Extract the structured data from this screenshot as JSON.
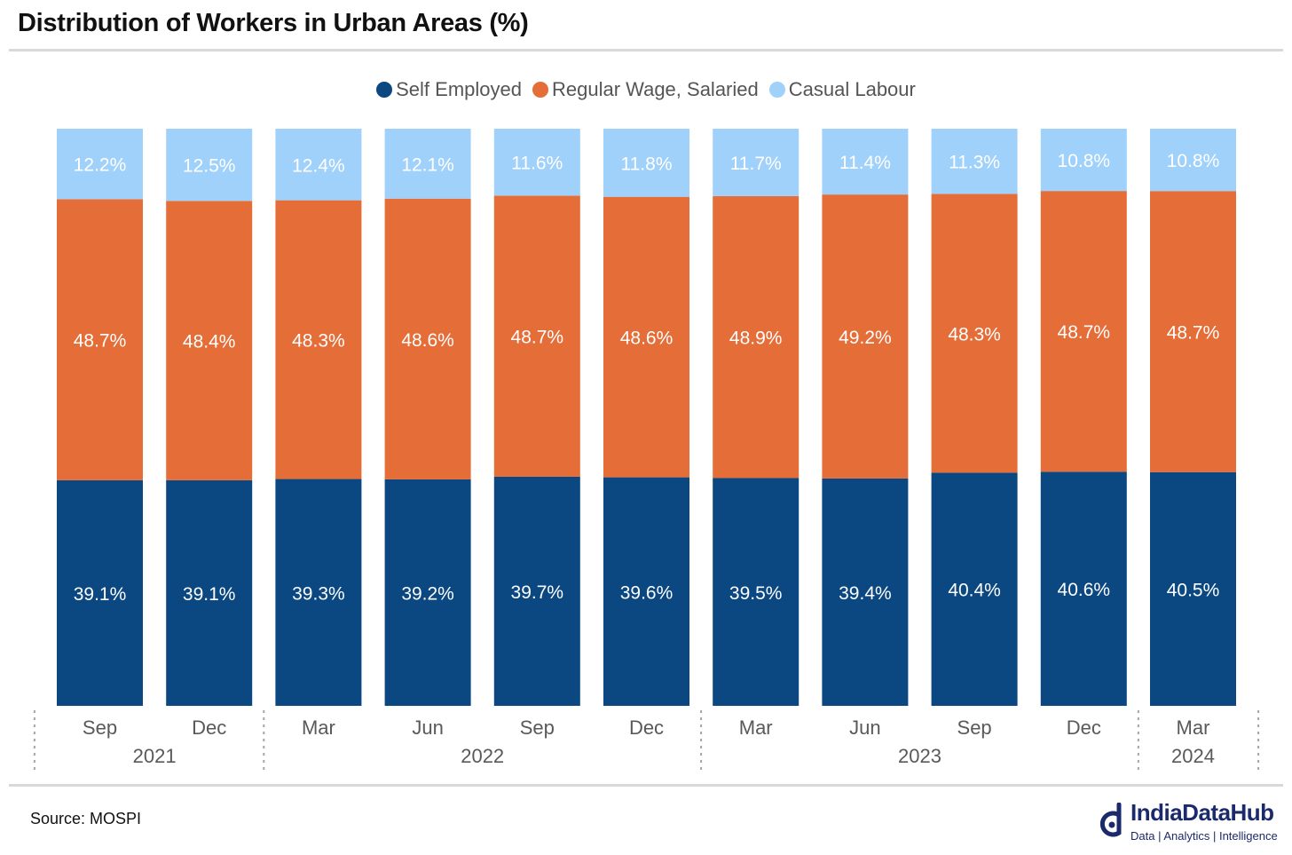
{
  "header": {
    "title": "Distribution of Workers in Urban Areas (%)"
  },
  "footer": {
    "source": "Source: MOSPI",
    "brand_name": "IndiaDataHub",
    "brand_tagline": "Data | Analytics | Intelligence"
  },
  "chart_data": {
    "type": "bar",
    "stacked": true,
    "ylim": [
      0,
      100
    ],
    "grid": false,
    "legend_position": "top-center",
    "categories": [
      "Sep",
      "Dec",
      "Mar",
      "Jun",
      "Sep",
      "Dec",
      "Mar",
      "Jun",
      "Sep",
      "Dec",
      "Mar"
    ],
    "year_groups": [
      {
        "label": "2021",
        "count": 2
      },
      {
        "label": "2022",
        "count": 4
      },
      {
        "label": "2023",
        "count": 4
      },
      {
        "label": "2024",
        "count": 1
      }
    ],
    "series": [
      {
        "name": "Self Employed",
        "color": "#0b4780",
        "label_color": "#ffffff",
        "values": [
          39.1,
          39.1,
          39.3,
          39.2,
          39.7,
          39.6,
          39.5,
          39.4,
          40.4,
          40.6,
          40.5
        ],
        "labels": [
          "39.1%",
          "39.1%",
          "39.3%",
          "39.2%",
          "39.7%",
          "39.6%",
          "39.5%",
          "39.4%",
          "40.4%",
          "40.6%",
          "40.5%"
        ]
      },
      {
        "name": "Regular Wage, Salaried",
        "color": "#e56d38",
        "label_color": "#ffffff",
        "values": [
          48.7,
          48.4,
          48.3,
          48.6,
          48.7,
          48.6,
          48.9,
          49.2,
          48.3,
          48.7,
          48.7
        ],
        "labels": [
          "48.7%",
          "48.4%",
          "48.3%",
          "48.6%",
          "48.7%",
          "48.6%",
          "48.9%",
          "49.2%",
          "48.3%",
          "48.7%",
          "48.7%"
        ]
      },
      {
        "name": "Casual Labour",
        "color": "#9fd1fb",
        "label_color": "#ffffff",
        "values": [
          12.2,
          12.5,
          12.4,
          12.1,
          11.6,
          11.8,
          11.7,
          11.4,
          11.3,
          10.8,
          10.8
        ],
        "labels": [
          "12.2%",
          "12.5%",
          "12.4%",
          "12.1%",
          "11.6%",
          "11.8%",
          "11.7%",
          "11.4%",
          "11.3%",
          "10.8%",
          "10.8%"
        ]
      }
    ]
  }
}
